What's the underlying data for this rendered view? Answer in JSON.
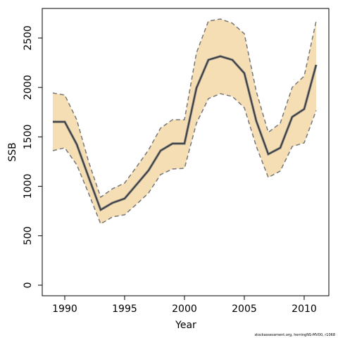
{
  "chart_data": {
    "type": "line",
    "xlabel": "Year",
    "ylabel": "SSB",
    "footer": "stockassessment.org, herringNS-MV00, r1068",
    "x": [
      1989,
      1990,
      1991,
      1992,
      1993,
      1994,
      1995,
      1996,
      1997,
      1998,
      1999,
      2000,
      2001,
      2002,
      2003,
      2004,
      2005,
      2006,
      2007,
      2008,
      2009,
      2010,
      2011
    ],
    "values": [
      1652,
      1652,
      1425,
      1090,
      762,
      833,
      876,
      1018,
      1161,
      1360,
      1432,
      1432,
      1994,
      2279,
      2315,
      2279,
      2144,
      1660,
      1325,
      1389,
      1702,
      1781,
      2229
    ],
    "upper": [
      1944,
      1923,
      1674,
      1246,
      890,
      976,
      1033,
      1197,
      1368,
      1588,
      1674,
      1674,
      2350,
      2671,
      2692,
      2650,
      2543,
      1959,
      1546,
      1638,
      2001,
      2115,
      2671
    ],
    "lower": [
      1360,
      1389,
      1218,
      926,
      620,
      691,
      712,
      819,
      933,
      1118,
      1175,
      1182,
      1638,
      1887,
      1937,
      1909,
      1795,
      1403,
      1090,
      1154,
      1403,
      1439,
      1766
    ],
    "color": "#333333",
    "band_color": "#f5deb3",
    "bound_color": "#777777",
    "xlim": [
      1988.12,
      2012.06
    ],
    "ylim": [
      -107,
      2799
    ],
    "xticks": [
      1990,
      1995,
      2000,
      2005,
      2010
    ],
    "yticks": [
      0,
      500,
      1000,
      1500,
      2000,
      2500
    ]
  }
}
